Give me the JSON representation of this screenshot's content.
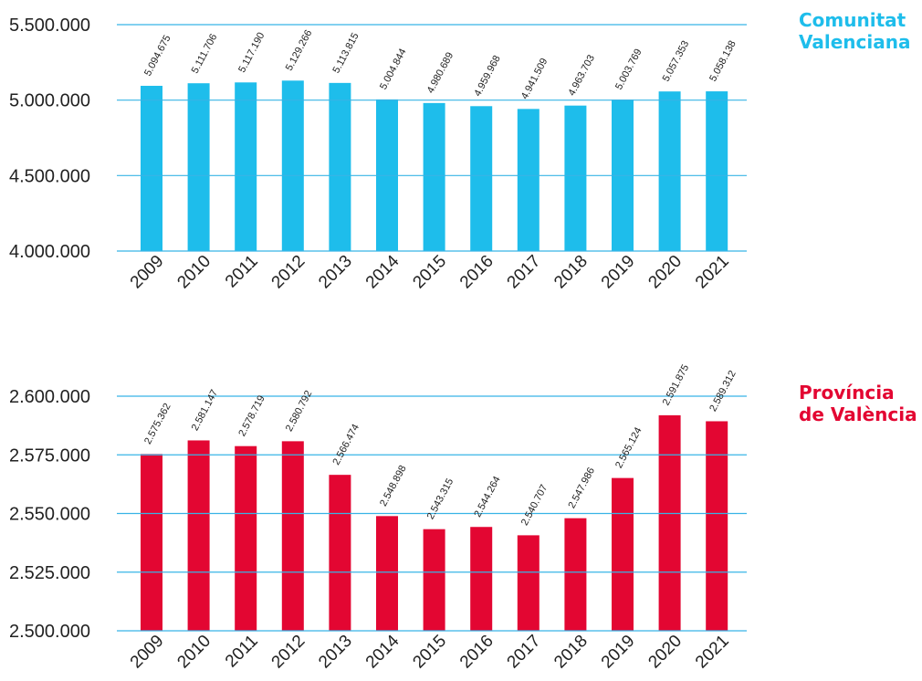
{
  "chart_data": [
    {
      "type": "bar",
      "title": "Comunitat Valenciana",
      "title_lines": [
        "Comunitat",
        "Valenciana"
      ],
      "color": "#1EBDEB",
      "categories": [
        "2009",
        "2010",
        "2011",
        "2012",
        "2013",
        "2014",
        "2015",
        "2016",
        "2017",
        "2018",
        "2019",
        "2020",
        "2021"
      ],
      "values": [
        5094675,
        5111706,
        5117190,
        5129266,
        5113815,
        5004844,
        4980689,
        4959968,
        4941509,
        4963703,
        5003769,
        5057353,
        5058138
      ],
      "value_labels": [
        "5.094.675",
        "5.111.706",
        "5.117.190",
        "5.129.266",
        "5.113.815",
        "5.004.844",
        "4.980.689",
        "4.959.968",
        "4.941.509",
        "4.963.703",
        "5.003.769",
        "5.057.353",
        "5.058.138"
      ],
      "ylim": [
        4000000,
        5500000
      ],
      "yticks": [
        4000000,
        4500000,
        5000000,
        5500000
      ],
      "ytick_labels": [
        "4.000.000",
        "4.500.000",
        "5.000.000",
        "5.500.000"
      ],
      "grid": true
    },
    {
      "type": "bar",
      "title": "Província de València",
      "title_lines": [
        "Província",
        "de València"
      ],
      "color": "#E30632",
      "categories": [
        "2009",
        "2010",
        "2011",
        "2012",
        "2013",
        "2014",
        "2015",
        "2016",
        "2017",
        "2018",
        "2019",
        "2020",
        "2021"
      ],
      "values": [
        2575362,
        2581147,
        2578719,
        2580792,
        2566474,
        2548898,
        2543315,
        2544264,
        2540707,
        2547986,
        2565124,
        2591875,
        2589312
      ],
      "value_labels": [
        "2.575.362",
        "2.581.147",
        "2.578.719",
        "2.580.792",
        "2.566.474",
        "2.548.898",
        "2.543.315",
        "2.544.264",
        "2.540.707",
        "2.547.986",
        "2.565.124",
        "2.591.875",
        "2.589.312"
      ],
      "ylim": [
        2500000,
        2600000
      ],
      "yticks": [
        2500000,
        2525000,
        2550000,
        2575000,
        2600000
      ],
      "ytick_labels": [
        "2.500.000",
        "2.525.000",
        "2.550.000",
        "2.575.000",
        "2.600.000"
      ],
      "grid": true
    }
  ]
}
